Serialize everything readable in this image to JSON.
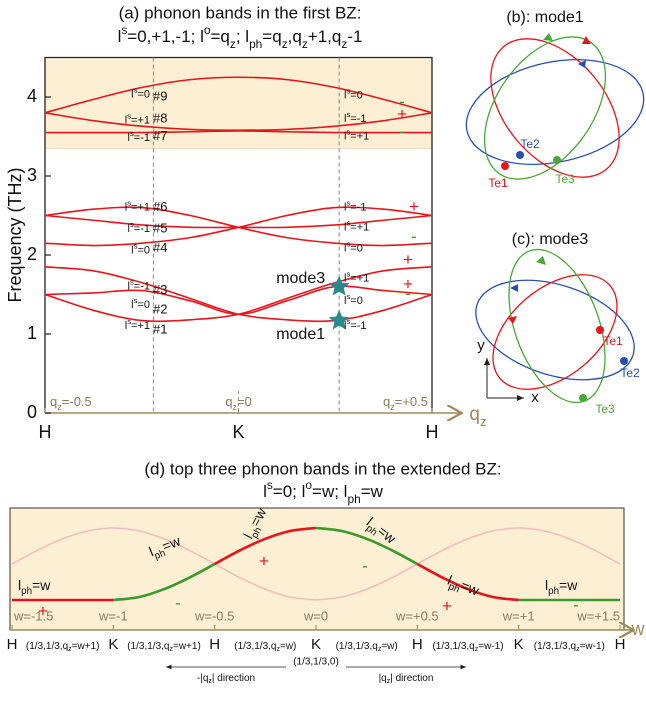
{
  "chart_data": [
    {
      "type": "line",
      "title": "(a) phonon bands in the first BZ:",
      "subtitle": [
        "l",
        {
          "sup": "s"
        },
        "=0,+1,-1; l",
        {
          "sup": "o"
        },
        "=q",
        {
          "sub": "z"
        },
        "; l",
        {
          "sub": "ph"
        },
        "=q",
        {
          "sub": "z"
        },
        ",q",
        {
          "sub": "z"
        },
        "+1,q",
        {
          "sub": "z"
        },
        "-1"
      ],
      "y_label": "Frequency (THz)",
      "x_label": [
        "q",
        {
          "sub": "z"
        }
      ],
      "x": [
        -0.5,
        -0.375,
        -0.25,
        -0.125,
        0,
        0.125,
        0.25,
        0.375,
        0.5
      ],
      "xlim": [
        -0.5,
        0.5
      ],
      "xticks": [
        {
          "value": -0.5,
          "label": "H"
        },
        {
          "value": 0,
          "label": "K"
        },
        {
          "value": 0.5,
          "label": "H"
        }
      ],
      "x_tick_sublabels": [
        [
          "q",
          {
            "sub": "z"
          },
          "=-0.5"
        ],
        [
          "q",
          {
            "sub": "z"
          },
          "=0"
        ],
        [
          "q",
          {
            "sub": "z"
          },
          "=+0.5"
        ]
      ],
      "ylim": [
        0,
        4.5
      ],
      "yticks": [
        0,
        1,
        2,
        3,
        4
      ],
      "highlight_ylim": [
        3.35,
        4.5
      ],
      "highlight_color": "#fcefd4",
      "vlines": [
        -0.22,
        0.26
      ],
      "series": [
        {
          "color": "#e8141c",
          "values": [
            1.85,
            1.8,
            1.65,
            1.45,
            1.25,
            1.18,
            1.17,
            1.3,
            1.5
          ]
        },
        {
          "color": "#e8141c",
          "values": [
            1.5,
            1.3,
            1.17,
            1.18,
            1.25,
            1.45,
            1.65,
            1.8,
            1.85
          ]
        },
        {
          "color": "#e8141c",
          "values": [
            1.5,
            1.52,
            1.55,
            1.42,
            1.25,
            1.42,
            1.6,
            1.55,
            1.5
          ]
        },
        {
          "color": "#e8141c",
          "values": [
            2.5,
            2.44,
            2.38,
            2.35,
            2.35,
            2.35,
            2.38,
            2.44,
            2.5
          ]
        },
        {
          "color": "#e8141c",
          "values": [
            2.15,
            2.12,
            2.15,
            2.22,
            2.35,
            2.5,
            2.6,
            2.58,
            2.5
          ]
        },
        {
          "color": "#e8141c",
          "values": [
            2.5,
            2.58,
            2.6,
            2.5,
            2.35,
            2.22,
            2.15,
            2.12,
            2.15
          ]
        },
        {
          "color": "#e8141c",
          "values": [
            3.55,
            3.55,
            3.55,
            3.56,
            3.57,
            3.56,
            3.55,
            3.55,
            3.55
          ]
        },
        {
          "color": "#e8141c",
          "values": [
            3.8,
            3.7,
            3.63,
            3.59,
            3.58,
            3.59,
            3.63,
            3.7,
            3.8
          ]
        },
        {
          "color": "#e8141c",
          "values": [
            3.8,
            3.97,
            4.12,
            4.22,
            4.25,
            4.22,
            4.12,
            3.97,
            3.8
          ]
        }
      ],
      "markers": [
        {
          "label": "mode1",
          "x": 0.26,
          "y": 1.17,
          "color": "#2a8a8a"
        },
        {
          "label": "mode3",
          "x": 0.26,
          "y": 1.6,
          "color": "#2a8a8a"
        }
      ],
      "band_labels": [
        "#1",
        "#2",
        "#3",
        "#4",
        "#5",
        "#6",
        "#7",
        "#8",
        "#9"
      ],
      "left_labels": [
        [
          "l",
          {
            "sup": "s"
          },
          "=0"
        ],
        [
          "l",
          {
            "sup": "s"
          },
          "=+1"
        ],
        [
          "l",
          {
            "sup": "s"
          },
          "=-1"
        ],
        [
          "l",
          {
            "sup": "s"
          },
          "=+1"
        ],
        [
          "l",
          {
            "sup": "s"
          },
          "=-1"
        ],
        [
          "l",
          {
            "sup": "s"
          },
          "=0"
        ],
        [
          "l",
          {
            "sup": "s"
          },
          "=-1"
        ],
        [
          "l",
          {
            "sup": "s"
          },
          "=0"
        ],
        [
          "l",
          {
            "sup": "s"
          },
          "=+1"
        ]
      ],
      "right_labels": [
        [
          "l",
          {
            "sup": "s"
          },
          "=0"
        ],
        [
          "l",
          {
            "sup": "s"
          },
          "=-1"
        ],
        [
          "l",
          {
            "sup": "s"
          },
          "=+1"
        ],
        [
          "l",
          {
            "sup": "s"
          },
          "=-1"
        ],
        [
          "l",
          {
            "sup": "s"
          },
          "=+1"
        ],
        [
          "l",
          {
            "sup": "s"
          },
          "=0"
        ],
        [
          "l",
          {
            "sup": "s"
          },
          "=+1"
        ],
        [
          "l",
          {
            "sup": "s"
          },
          "=0"
        ],
        [
          "l",
          {
            "sup": "s"
          },
          "=-1"
        ]
      ],
      "signs": [
        {
          "text": "-",
          "color": "#3a9a2a"
        },
        {
          "text": "+",
          "color": "#e8141c"
        },
        {
          "text": "-",
          "color": "#3a9a2a"
        },
        {
          "text": "+",
          "color": "#e8141c"
        },
        {
          "text": "-",
          "color": "#3a9a2a"
        },
        {
          "text": "+",
          "color": "#e8141c"
        },
        {
          "text": "+",
          "color": "#e8141c"
        },
        {
          "text": "-",
          "color": "#3a9a2a"
        }
      ]
    },
    {
      "type": "line",
      "title": "(d) top three phonon bands in the extended BZ:",
      "subtitle": [
        "l",
        {
          "sup": "s"
        },
        "=0; l",
        {
          "sup": "o"
        },
        "=w; l",
        {
          "sub": "ph"
        },
        "=w"
      ],
      "x_label": "w",
      "xlim": [
        -1.5,
        1.5
      ],
      "xticks": [
        {
          "value": -1.5,
          "label": "w=-1.5"
        },
        {
          "value": -1,
          "label": "w=-1"
        },
        {
          "value": -0.5,
          "label": "w=-0.5"
        },
        {
          "value": 0,
          "label": "w=0"
        },
        {
          "value": 0.5,
          "label": "w=+0.5"
        },
        {
          "value": 1,
          "label": "w=+1"
        },
        {
          "value": 1.5,
          "label": "w=+1.5"
        }
      ],
      "symmetry_points": [
        "H",
        "K",
        "H",
        "K",
        "H",
        "K",
        "H"
      ],
      "path_labels": [
        [
          "(1/3,1/3,q",
          {
            "sub": "z"
          },
          "=w+1)"
        ],
        [
          "(1/3,1/3,q",
          {
            "sub": "z"
          },
          "=w+1)"
        ],
        [
          "(1/3,1/3,q",
          {
            "sub": "z"
          },
          "=w)"
        ],
        [
          "(1/3,1/3,q",
          {
            "sub": "z"
          },
          "=w)"
        ],
        [
          "(1/3,1/3,q",
          {
            "sub": "z"
          },
          "=w-1)"
        ],
        [
          "(1/3,1/3,q",
          {
            "sub": "z"
          },
          "=w-1)"
        ]
      ],
      "direction_labels": [
        [
          "-|q",
          {
            "sub": "z"
          },
          "| direction"
        ],
        "(1/3,1/3,0)",
        [
          "|q",
          {
            "sub": "z"
          },
          "| direction"
        ]
      ],
      "background": "#fcefd4",
      "series": [
        {
          "color": "#f6bcbc",
          "x": [
            -1.5,
            -1.375,
            -1.25,
            -1.125,
            -1,
            -0.875,
            -0.75,
            -0.625,
            -0.5,
            -0.375,
            -0.25,
            -0.125,
            0
          ],
          "values": [
            0.5,
            0.69,
            0.85,
            0.96,
            1,
            0.96,
            0.85,
            0.69,
            0.5,
            0.31,
            0.15,
            0.04,
            0
          ]
        },
        {
          "color": "#f6bcbc",
          "x": [
            0,
            0.125,
            0.25,
            0.375,
            0.5,
            0.625,
            0.75,
            0.875,
            1,
            1.125,
            1.25,
            1.375,
            1.5
          ],
          "values": [
            0,
            0.04,
            0.15,
            0.31,
            0.5,
            0.69,
            0.85,
            0.96,
            1,
            0.96,
            0.85,
            0.69,
            0.5
          ]
        },
        {
          "color": "#e8141c",
          "x": [
            -1.5,
            -1.375,
            -1.25,
            -1.125,
            -1
          ],
          "values": [
            0,
            0,
            0,
            0,
            0
          ]
        },
        {
          "color": "#3a9a2a",
          "x": [
            -1,
            -0.875,
            -0.75,
            -0.625,
            -0.5
          ],
          "values": [
            0,
            0.04,
            0.15,
            0.31,
            0.5
          ]
        },
        {
          "color": "#e8141c",
          "x": [
            -0.5,
            -0.375,
            -0.25,
            -0.125,
            0
          ],
          "values": [
            0.5,
            0.69,
            0.85,
            0.96,
            1
          ]
        },
        {
          "color": "#3a9a2a",
          "x": [
            0,
            0.125,
            0.25,
            0.375,
            0.5
          ],
          "values": [
            1,
            0.96,
            0.85,
            0.69,
            0.5
          ]
        },
        {
          "color": "#e8141c",
          "x": [
            0.5,
            0.625,
            0.75,
            0.875,
            1
          ],
          "values": [
            0.5,
            0.31,
            0.15,
            0.04,
            0
          ]
        },
        {
          "color": "#3a9a2a",
          "x": [
            1,
            1.125,
            1.25,
            1.375,
            1.5
          ],
          "values": [
            0,
            0,
            0,
            0,
            0
          ]
        }
      ],
      "annotations": [
        [
          "l",
          {
            "sub": "ph"
          },
          "=w"
        ],
        [
          "l",
          {
            "sub": "ph"
          },
          "=w"
        ],
        [
          "l",
          {
            "sub": "ph"
          },
          "=w"
        ],
        [
          "l",
          {
            "sub": "ph"
          },
          "=w"
        ],
        [
          "l",
          {
            "sub": "ph"
          },
          "=w"
        ],
        [
          "l",
          {
            "sub": "ph"
          },
          "=w"
        ]
      ],
      "signs": [
        {
          "text": "+",
          "color": "#e8141c"
        },
        {
          "text": "-",
          "color": "#3a9a2a"
        },
        {
          "text": "+",
          "color": "#e8141c"
        },
        {
          "text": "-",
          "color": "#3a9a2a"
        },
        {
          "text": "+",
          "color": "#e8141c"
        },
        {
          "text": "-",
          "color": "#3a9a2a"
        }
      ]
    }
  ],
  "diagrams": [
    {
      "title": "(b): mode1",
      "atoms": [
        "Te1",
        "Te2",
        "Te3"
      ]
    },
    {
      "title": "(c): mode3",
      "atoms": [
        "Te1",
        "Te2",
        "Te3"
      ],
      "axes": [
        "y",
        "x"
      ]
    }
  ]
}
